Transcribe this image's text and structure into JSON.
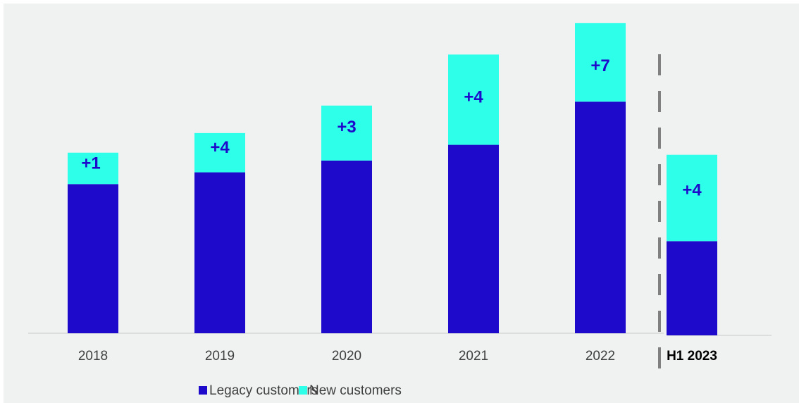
{
  "chart_data": {
    "type": "bar",
    "stacked": true,
    "categories": [
      "2018",
      "2019",
      "2020",
      "2021",
      "2022",
      "H1 2023"
    ],
    "category_bold": [
      false,
      false,
      false,
      false,
      false,
      true
    ],
    "series": [
      {
        "name": "Legacy customers",
        "color": "#1e0acb",
        "values": [
          19,
          20.5,
          22,
          24,
          29.5,
          12
        ]
      },
      {
        "name": "New customers",
        "color": "#2effe8",
        "values": [
          4,
          5,
          7,
          11.5,
          10,
          11
        ]
      }
    ],
    "segment_labels": [
      "+1",
      "+4",
      "+3",
      "+4",
      "+7",
      "+4"
    ],
    "label_color": "#1e0acb",
    "separator": {
      "style": "dashed",
      "after_category": "2022"
    },
    "ylim": [
      0,
      42
    ],
    "grid": false,
    "legend": "bottom-center",
    "colors": {
      "background": "#f0f2f2",
      "axis": "#c8c8c8",
      "separator": "#808080"
    }
  }
}
